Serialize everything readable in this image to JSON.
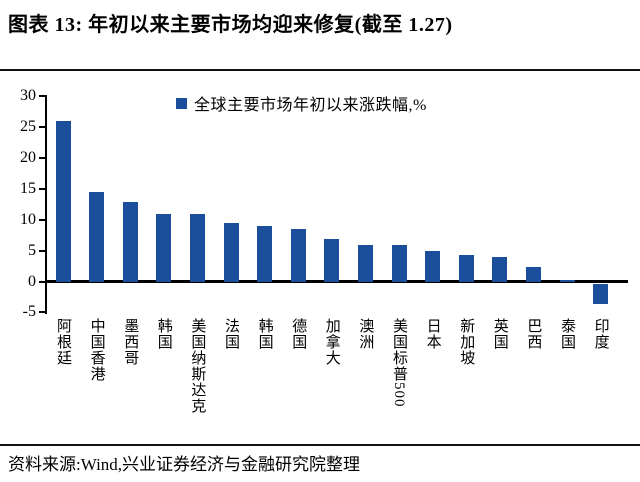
{
  "title": "图表 13: 年初以来主要市场均迎来修复(截至 1.27)",
  "source": "资料来源:Wind,兴业证券经济与金融研究院整理",
  "chart_data": {
    "type": "bar",
    "title": "图表 13: 年初以来主要市场均迎来修复(截至 1.27)",
    "legend": "全球主要市场年初以来涨跌幅,%",
    "legend_position": "top-center",
    "categories": [
      "阿根廷",
      "中国香港",
      "墨西哥",
      "韩国",
      "美国纳斯达克",
      "法国",
      "韩国",
      "德国",
      "加拿大",
      "澳洲",
      "美国标普500",
      "日本",
      "新加坡",
      "英国",
      "巴西",
      "泰国",
      "印度"
    ],
    "values": [
      26.0,
      14.5,
      13.0,
      11.0,
      11.0,
      9.5,
      9.0,
      8.5,
      7.0,
      6.0,
      6.0,
      5.0,
      4.3,
      4.0,
      2.4,
      0.4,
      -3.2
    ],
    "ylabel": "",
    "xlabel": "",
    "ylim": [
      -5,
      30
    ],
    "yticks": [
      30,
      25,
      20,
      15,
      10,
      5,
      0,
      -5
    ],
    "grid": false,
    "bar_color": "#1B4F9C",
    "axis_color": "#000000"
  }
}
